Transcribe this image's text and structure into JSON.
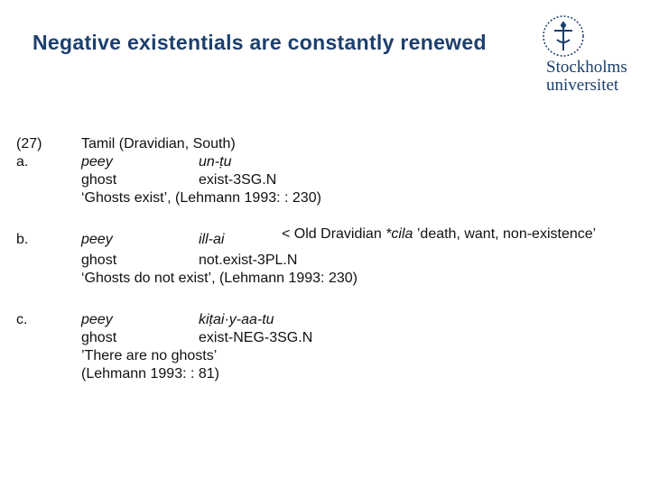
{
  "header": {
    "title": "Negative existentials are constantly renewed",
    "logo": [
      "Stockholms",
      "universitet"
    ]
  },
  "examples": [
    {
      "number": "(27)",
      "label": "a.",
      "heading": "Tamil (Dravidian, South)",
      "form": [
        "peey",
        "un-ṭu"
      ],
      "gloss": [
        "ghost",
        "exist-3SG.N"
      ],
      "translation": [
        "‘Ghosts exist’, (Lehmann 1993: : 230)"
      ]
    },
    {
      "label": "b.",
      "note": [
        "< Old Dravidian",
        "*cila",
        "’death, want, non-existence’"
      ],
      "form": [
        "peey",
        "ill-ai"
      ],
      "gloss": [
        "ghost",
        "not.exist-3PL.N"
      ],
      "translation": [
        "‘Ghosts do not exist’, (Lehmann 1993: 230)"
      ]
    },
    {
      "label": "c.",
      "form": [
        "peey",
        "kiṭai·y-aa-tu"
      ],
      "gloss": [
        "ghost",
        "exist-NEG-3SG.N"
      ],
      "translation": [
        "’There are no ghosts’",
        "(Lehmann 1993: : 81)"
      ]
    }
  ]
}
